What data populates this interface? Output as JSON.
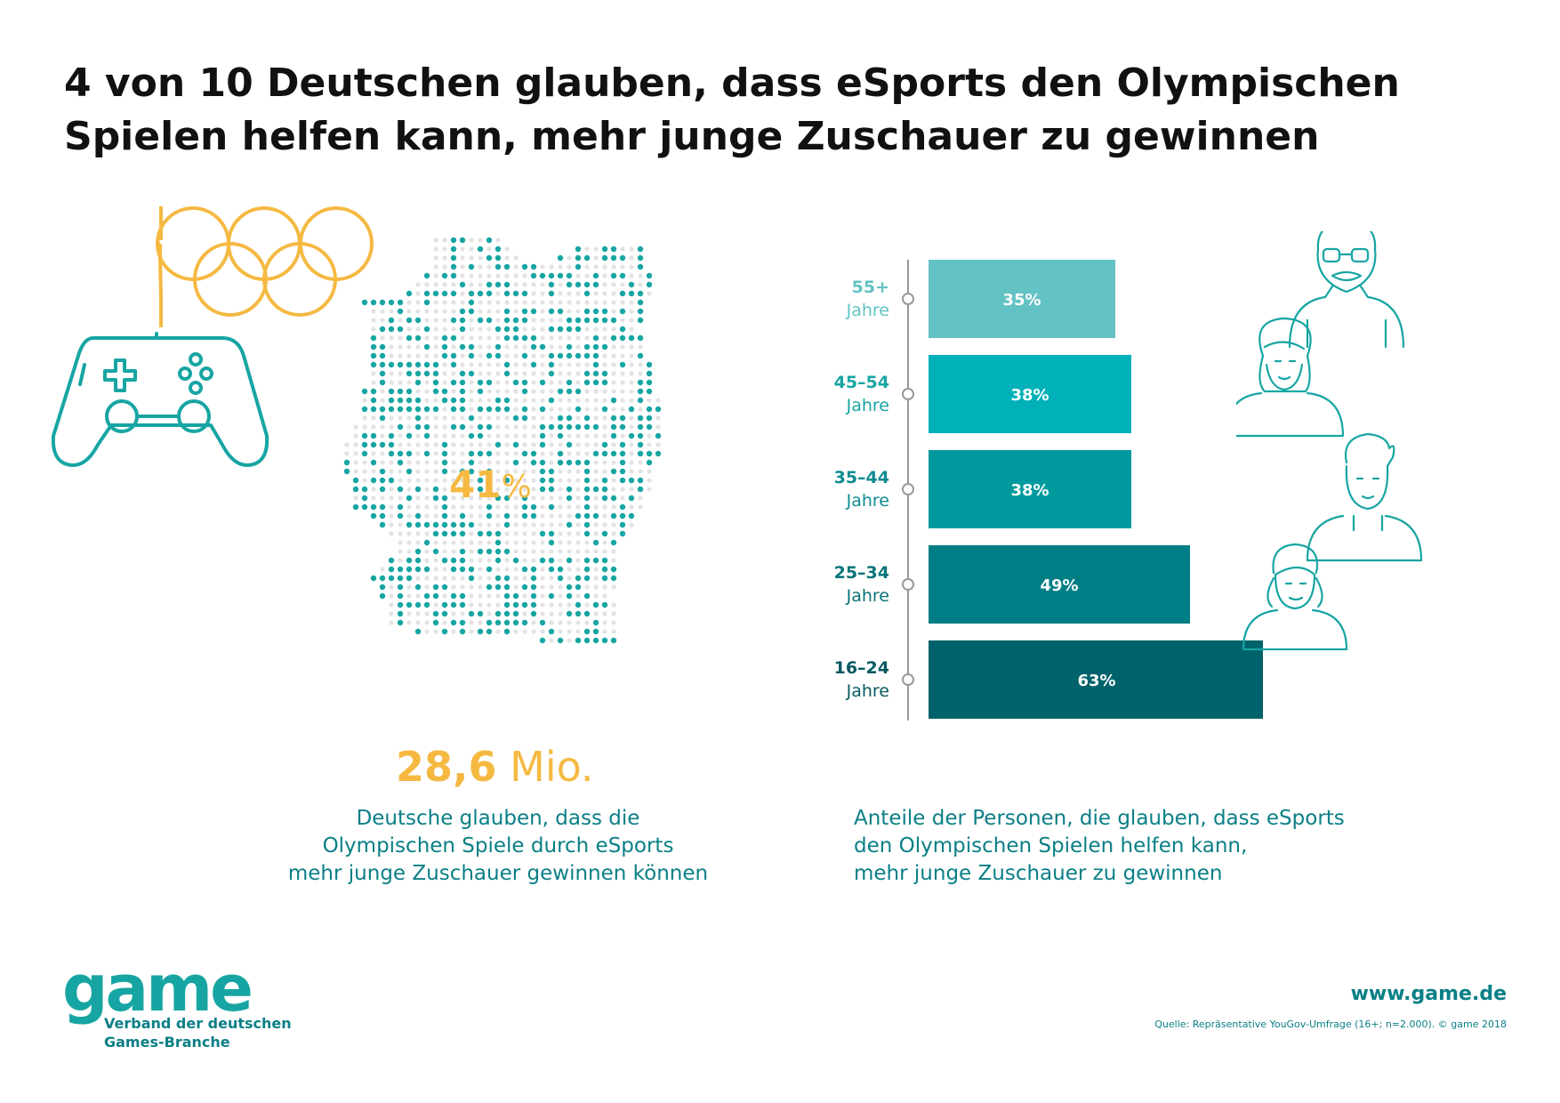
{
  "title": {
    "line1": "4 von 10 Deutschen glauben, dass eSports den Olympischen",
    "line2": "Spielen helfen kann, mehr junge Zuschauer zu gewinnen"
  },
  "map": {
    "percent_value": "41",
    "percent_symbol": "%",
    "share": 0.41
  },
  "headline_figure": {
    "value": "28,6",
    "unit": "Mio."
  },
  "left_caption": {
    "line1": "Deutsche glauben, dass die",
    "line2": "Olympischen Spiele durch eSports",
    "line3": "mehr junge Zuschauer gewinnen können"
  },
  "right_caption": {
    "line1": "Anteile der Personen, die glauben, dass eSports",
    "line2": "den Olympischen Spielen helfen kann,",
    "line3": "mehr junge Zuschauer zu gewinnen"
  },
  "chart_data": {
    "type": "bar",
    "orientation": "horizontal",
    "categories": [
      "55+",
      "45–54",
      "35–44",
      "25–34",
      "16–24"
    ],
    "category_sublabel": "Jahre",
    "values": [
      35,
      38,
      38,
      49,
      63
    ],
    "unit": "%",
    "xlim": [
      0,
      100
    ],
    "colors": [
      "#63c2c4",
      "#00b1b9",
      "#009a9e",
      "#007e85",
      "#00626a"
    ],
    "label_colors": [
      "#63c2c4",
      "#17a5a3",
      "#0f8b8f",
      "#0a7479",
      "#075a60"
    ]
  },
  "colors": {
    "teal": "#17a5a3",
    "dark_teal": "#0a7f86",
    "yellow": "#f5b942"
  },
  "icons": [
    "olympic-rings-icon",
    "gamepad-icon",
    "germany-dot-map",
    "senior-man-icon",
    "woman-icon",
    "young-man-icon",
    "girl-icon"
  ],
  "footer": {
    "logo": "game",
    "logo_sub1": "Verband der deutschen",
    "logo_sub2": "Games-Branche",
    "url": "www.game.de",
    "source": "Quelle: Repräsentative YouGov-Umfrage (16+; n=2.000). © game 2018"
  }
}
